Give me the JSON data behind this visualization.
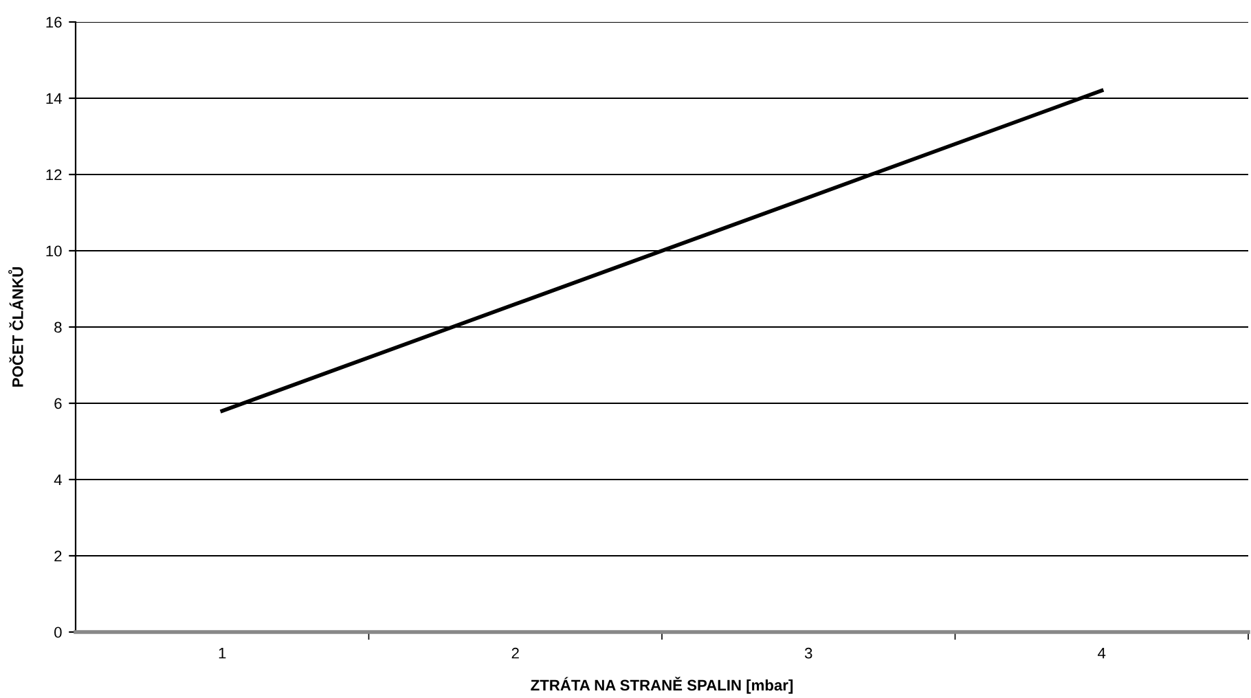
{
  "chart_data": {
    "type": "line",
    "xlabel": "ZTRÁTA NA STRANĚ SPALIN [mbar]",
    "ylabel": "POČET ČLÁNKŮ",
    "categories": [
      "1",
      "2",
      "3",
      "4"
    ],
    "series": [
      {
        "color": "#000000",
        "values": [
          5.8,
          8.6,
          11.4,
          14.2
        ]
      }
    ],
    "ylim": [
      0,
      16
    ],
    "yticks": [
      0,
      2,
      4,
      6,
      8,
      10,
      12,
      14,
      16
    ],
    "grid": "y",
    "marker": "none",
    "line_style": "solid",
    "legend": false
  }
}
